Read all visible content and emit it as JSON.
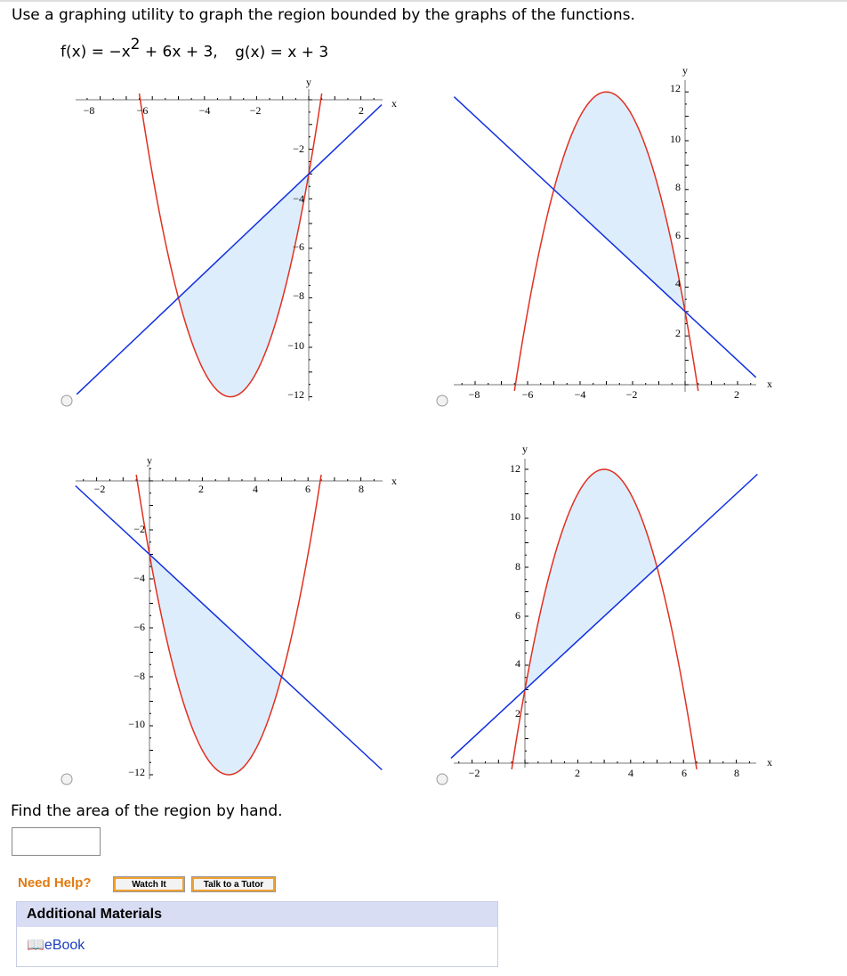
{
  "question": "Use a graphing utility to graph the region bounded by the graphs of the functions.",
  "functions": {
    "f_parts": [
      "f(x) = −x",
      "2",
      " + 6x + 3,"
    ],
    "g": "g(x) = x + 3"
  },
  "graphs": [
    {
      "x_label": "x",
      "y_label": "y",
      "x_ticks": [
        "−8",
        "−6",
        "−4",
        "−2",
        "2"
      ],
      "y_ticks": [
        "−2",
        "−4",
        "−6",
        "−8",
        "−10",
        "−12"
      ]
    },
    {
      "x_label": "x",
      "y_label": "y",
      "x_ticks": [
        "−8",
        "−6",
        "−4",
        "−2",
        "2"
      ],
      "y_ticks": [
        "12",
        "10",
        "8",
        "6",
        "4",
        "2"
      ]
    },
    {
      "x_label": "x",
      "y_label": "y",
      "x_ticks": [
        "−2",
        "2",
        "4",
        "6",
        "8"
      ],
      "y_ticks": [
        "−2",
        "−4",
        "−6",
        "−8",
        "−10",
        "−12"
      ]
    },
    {
      "x_label": "x",
      "y_label": "y",
      "x_ticks": [
        "−2",
        "2",
        "4",
        "6",
        "8"
      ],
      "y_ticks": [
        "12",
        "10",
        "8",
        "6",
        "4",
        "2"
      ]
    }
  ],
  "prompt": "Find the area of the region by hand.",
  "help": {
    "label": "Need Help?",
    "buttons": [
      "Watch It",
      "Talk to a Tutor"
    ]
  },
  "materials": {
    "title": "Additional Materials",
    "ebook": "eBook"
  }
}
